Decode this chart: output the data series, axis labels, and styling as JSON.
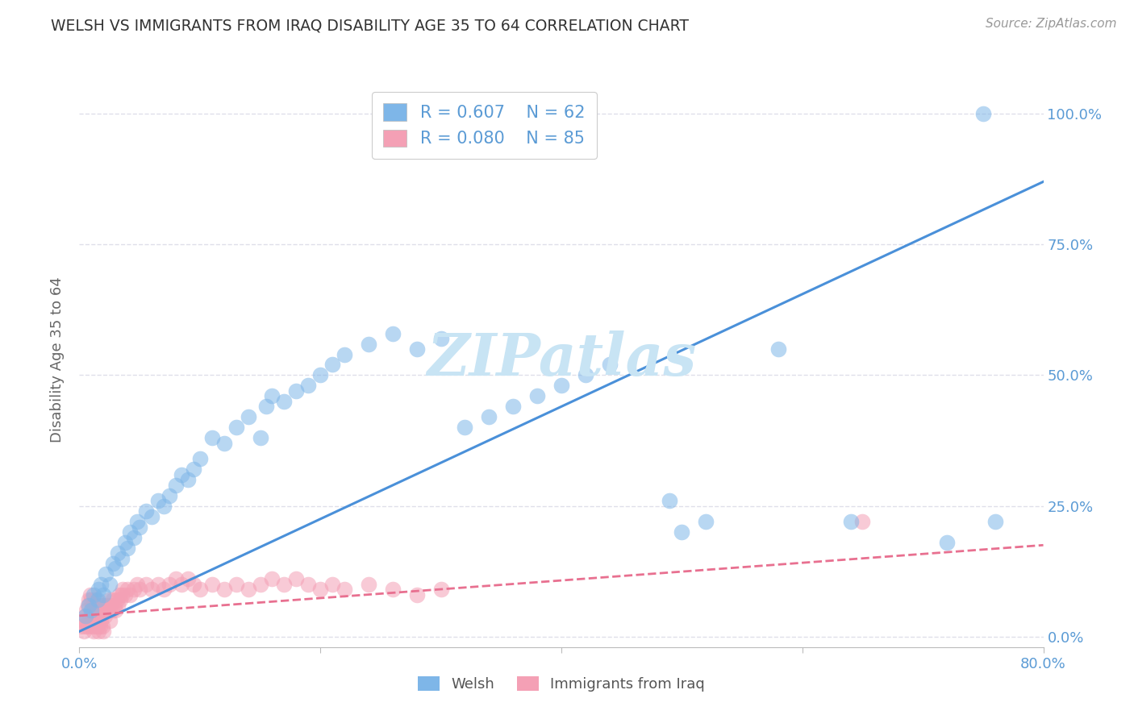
{
  "title": "WELSH VS IMMIGRANTS FROM IRAQ DISABILITY AGE 35 TO 64 CORRELATION CHART",
  "source": "Source: ZipAtlas.com",
  "ylabel": "Disability Age 35 to 64",
  "xlim": [
    0.0,
    0.8
  ],
  "ylim": [
    -0.02,
    1.08
  ],
  "welsh_R": 0.607,
  "welsh_N": 62,
  "iraq_R": 0.08,
  "iraq_N": 85,
  "welsh_color": "#7EB6E8",
  "iraq_color": "#F4A0B5",
  "welsh_line_color": "#4A90D9",
  "iraq_line_color": "#E87090",
  "watermark": "ZIPatlas",
  "watermark_color": "#C8E4F4",
  "legend_welsh_label": "Welsh",
  "legend_iraq_label": "Immigrants from Iraq",
  "background_color": "#FFFFFF",
  "grid_color": "#DCDCE8",
  "title_color": "#333333",
  "axis_tick_color": "#5B9BD5",
  "axis_label_color": "#666666",
  "source_color": "#999999",
  "welsh_x": [
    0.005,
    0.008,
    0.01,
    0.012,
    0.015,
    0.016,
    0.018,
    0.02,
    0.022,
    0.025,
    0.028,
    0.03,
    0.032,
    0.035,
    0.038,
    0.04,
    0.042,
    0.045,
    0.048,
    0.05,
    0.055,
    0.06,
    0.065,
    0.07,
    0.075,
    0.08,
    0.085,
    0.09,
    0.095,
    0.1,
    0.11,
    0.12,
    0.13,
    0.14,
    0.15,
    0.155,
    0.16,
    0.17,
    0.18,
    0.19,
    0.2,
    0.21,
    0.22,
    0.24,
    0.26,
    0.28,
    0.3,
    0.32,
    0.34,
    0.36,
    0.38,
    0.4,
    0.42,
    0.44,
    0.49,
    0.5,
    0.52,
    0.58,
    0.64,
    0.72,
    0.75,
    0.76
  ],
  "welsh_y": [
    0.04,
    0.06,
    0.05,
    0.08,
    0.07,
    0.09,
    0.1,
    0.08,
    0.12,
    0.1,
    0.14,
    0.13,
    0.16,
    0.15,
    0.18,
    0.17,
    0.2,
    0.19,
    0.22,
    0.21,
    0.24,
    0.23,
    0.26,
    0.25,
    0.27,
    0.29,
    0.31,
    0.3,
    0.32,
    0.34,
    0.38,
    0.37,
    0.4,
    0.42,
    0.38,
    0.44,
    0.46,
    0.45,
    0.47,
    0.48,
    0.5,
    0.52,
    0.54,
    0.56,
    0.58,
    0.55,
    0.57,
    0.4,
    0.42,
    0.44,
    0.46,
    0.48,
    0.5,
    0.52,
    0.26,
    0.2,
    0.22,
    0.55,
    0.22,
    0.18,
    1.0,
    0.22
  ],
  "iraq_x": [
    0.002,
    0.003,
    0.004,
    0.005,
    0.005,
    0.006,
    0.006,
    0.007,
    0.007,
    0.008,
    0.008,
    0.009,
    0.009,
    0.01,
    0.01,
    0.011,
    0.011,
    0.012,
    0.012,
    0.013,
    0.013,
    0.014,
    0.014,
    0.015,
    0.015,
    0.016,
    0.016,
    0.017,
    0.017,
    0.018,
    0.018,
    0.019,
    0.019,
    0.02,
    0.02,
    0.021,
    0.022,
    0.023,
    0.024,
    0.025,
    0.025,
    0.026,
    0.027,
    0.028,
    0.029,
    0.03,
    0.031,
    0.032,
    0.033,
    0.034,
    0.035,
    0.036,
    0.038,
    0.04,
    0.042,
    0.045,
    0.048,
    0.05,
    0.055,
    0.06,
    0.065,
    0.07,
    0.075,
    0.08,
    0.085,
    0.09,
    0.095,
    0.1,
    0.11,
    0.12,
    0.13,
    0.14,
    0.15,
    0.16,
    0.17,
    0.18,
    0.19,
    0.2,
    0.21,
    0.22,
    0.24,
    0.26,
    0.28,
    0.3,
    0.65
  ],
  "iraq_y": [
    0.02,
    0.03,
    0.01,
    0.04,
    0.02,
    0.05,
    0.03,
    0.06,
    0.02,
    0.07,
    0.03,
    0.08,
    0.04,
    0.07,
    0.03,
    0.06,
    0.02,
    0.05,
    0.01,
    0.06,
    0.02,
    0.07,
    0.03,
    0.06,
    0.02,
    0.05,
    0.01,
    0.04,
    0.02,
    0.05,
    0.03,
    0.06,
    0.02,
    0.05,
    0.01,
    0.04,
    0.05,
    0.06,
    0.05,
    0.07,
    0.03,
    0.06,
    0.05,
    0.07,
    0.06,
    0.05,
    0.07,
    0.06,
    0.08,
    0.07,
    0.08,
    0.09,
    0.08,
    0.09,
    0.08,
    0.09,
    0.1,
    0.09,
    0.1,
    0.09,
    0.1,
    0.09,
    0.1,
    0.11,
    0.1,
    0.11,
    0.1,
    0.09,
    0.1,
    0.09,
    0.1,
    0.09,
    0.1,
    0.11,
    0.1,
    0.11,
    0.1,
    0.09,
    0.1,
    0.09,
    0.1,
    0.09,
    0.08,
    0.09,
    0.22
  ],
  "welsh_line_x": [
    0.0,
    0.8
  ],
  "welsh_line_y": [
    0.01,
    0.87
  ],
  "iraq_line_x": [
    0.0,
    0.8
  ],
  "iraq_line_y": [
    0.04,
    0.175
  ]
}
